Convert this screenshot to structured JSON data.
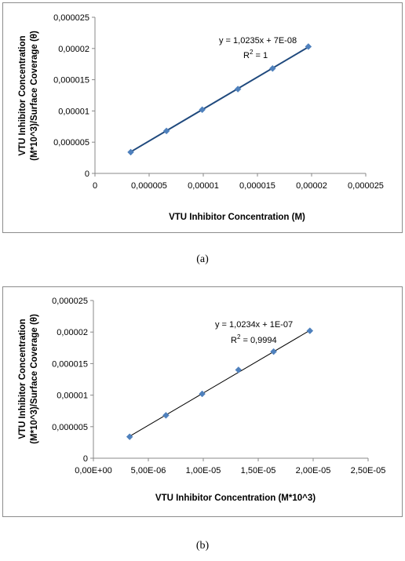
{
  "chart_data": [
    {
      "type": "scatter",
      "xlabel": "VTU Inhibitor Concentration (M)",
      "ylabel_lines": [
        "VTU Inhibitor Concentration",
        "(M*10^3)/Surface Coverage (θ)"
      ],
      "x_ticks": [
        "0",
        "0,000005",
        "0,00001",
        "0,000015",
        "0,00002",
        "0,000025"
      ],
      "y_ticks": [
        "0",
        "0,000005",
        "0,00001",
        "0,000015",
        "0,00002",
        "0,000025"
      ],
      "xlim": [
        0,
        2.5e-05
      ],
      "ylim": [
        0,
        2.5e-05
      ],
      "grid": false,
      "series": [
        {
          "x": [
            3.3e-06,
            6.6e-06,
            9.9e-06,
            1.32e-05,
            1.64e-05,
            1.97e-05
          ],
          "y": [
            3.4e-06,
            6.8e-06,
            1.02e-05,
            1.35e-05,
            1.68e-05,
            2.03e-05
          ]
        }
      ],
      "trendline": {
        "slope": 1.0235,
        "intercept": 7e-08
      },
      "equation": "y = 1,0235x + 7E-08",
      "r2_prefix": "R",
      "r2_value": " = 1",
      "marker_color": "#4f81bd",
      "line_color": "#1f497d"
    },
    {
      "type": "scatter",
      "xlabel": "VTU Inhibitor Concentration (M*10^3)",
      "ylabel_lines": [
        "VTU Inhibitor Concentration",
        "(M*10^3)/Surface Coverage (θ)"
      ],
      "x_ticks": [
        "0,00E+00",
        "5,00E-06",
        "1,00E-05",
        "1,50E-05",
        "2,00E-05",
        "2,50E-05"
      ],
      "y_ticks": [
        "0",
        "0,000005",
        "0,00001",
        "0,000015",
        "0,00002",
        "0,000025"
      ],
      "xlim": [
        0,
        2.5e-05
      ],
      "ylim": [
        0,
        2.5e-05
      ],
      "grid": false,
      "series": [
        {
          "x": [
            3.3e-06,
            6.6e-06,
            9.9e-06,
            1.32e-05,
            1.64e-05,
            1.97e-05
          ],
          "y": [
            3.4e-06,
            6.8e-06,
            1.02e-05,
            1.4e-05,
            1.69e-05,
            2.02e-05
          ]
        }
      ],
      "trendline": {
        "slope": 1.0234,
        "intercept": 1e-07
      },
      "equation": "y = 1,0234x + 1E-07",
      "r2_prefix": "R",
      "r2_value": " = 0,9994",
      "marker_color": "#4f81bd",
      "line_color": "#000000"
    }
  ],
  "captions": [
    "(a)",
    "(b)"
  ]
}
